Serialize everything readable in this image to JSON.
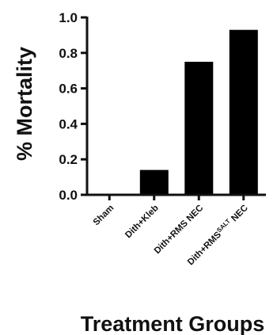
{
  "chart_data": {
    "type": "bar",
    "categories": [
      "Sham",
      "Dith+Kleb",
      "Dith+RMS NEC",
      "Dith+RMSˢᴬᴸᵀ NEC"
    ],
    "category_labels": [
      {
        "main": "Sham"
      },
      {
        "main": "Dith+Kleb"
      },
      {
        "main": "Dith+RMS NEC"
      },
      {
        "main": "Dith+RMS",
        "sup": "SALT",
        "tail": " NEC"
      }
    ],
    "values": [
      0.0,
      0.14,
      0.75,
      0.93
    ],
    "ylim": [
      0,
      1.0
    ],
    "yticks": [
      "0.0",
      "0.2",
      "0.4",
      "0.6",
      "0.8",
      "1.0"
    ],
    "title": "",
    "xlabel": "Treatment Groups",
    "ylabel": "% Mortality",
    "bar_color": "#000000",
    "grid": false,
    "legend": "none"
  }
}
